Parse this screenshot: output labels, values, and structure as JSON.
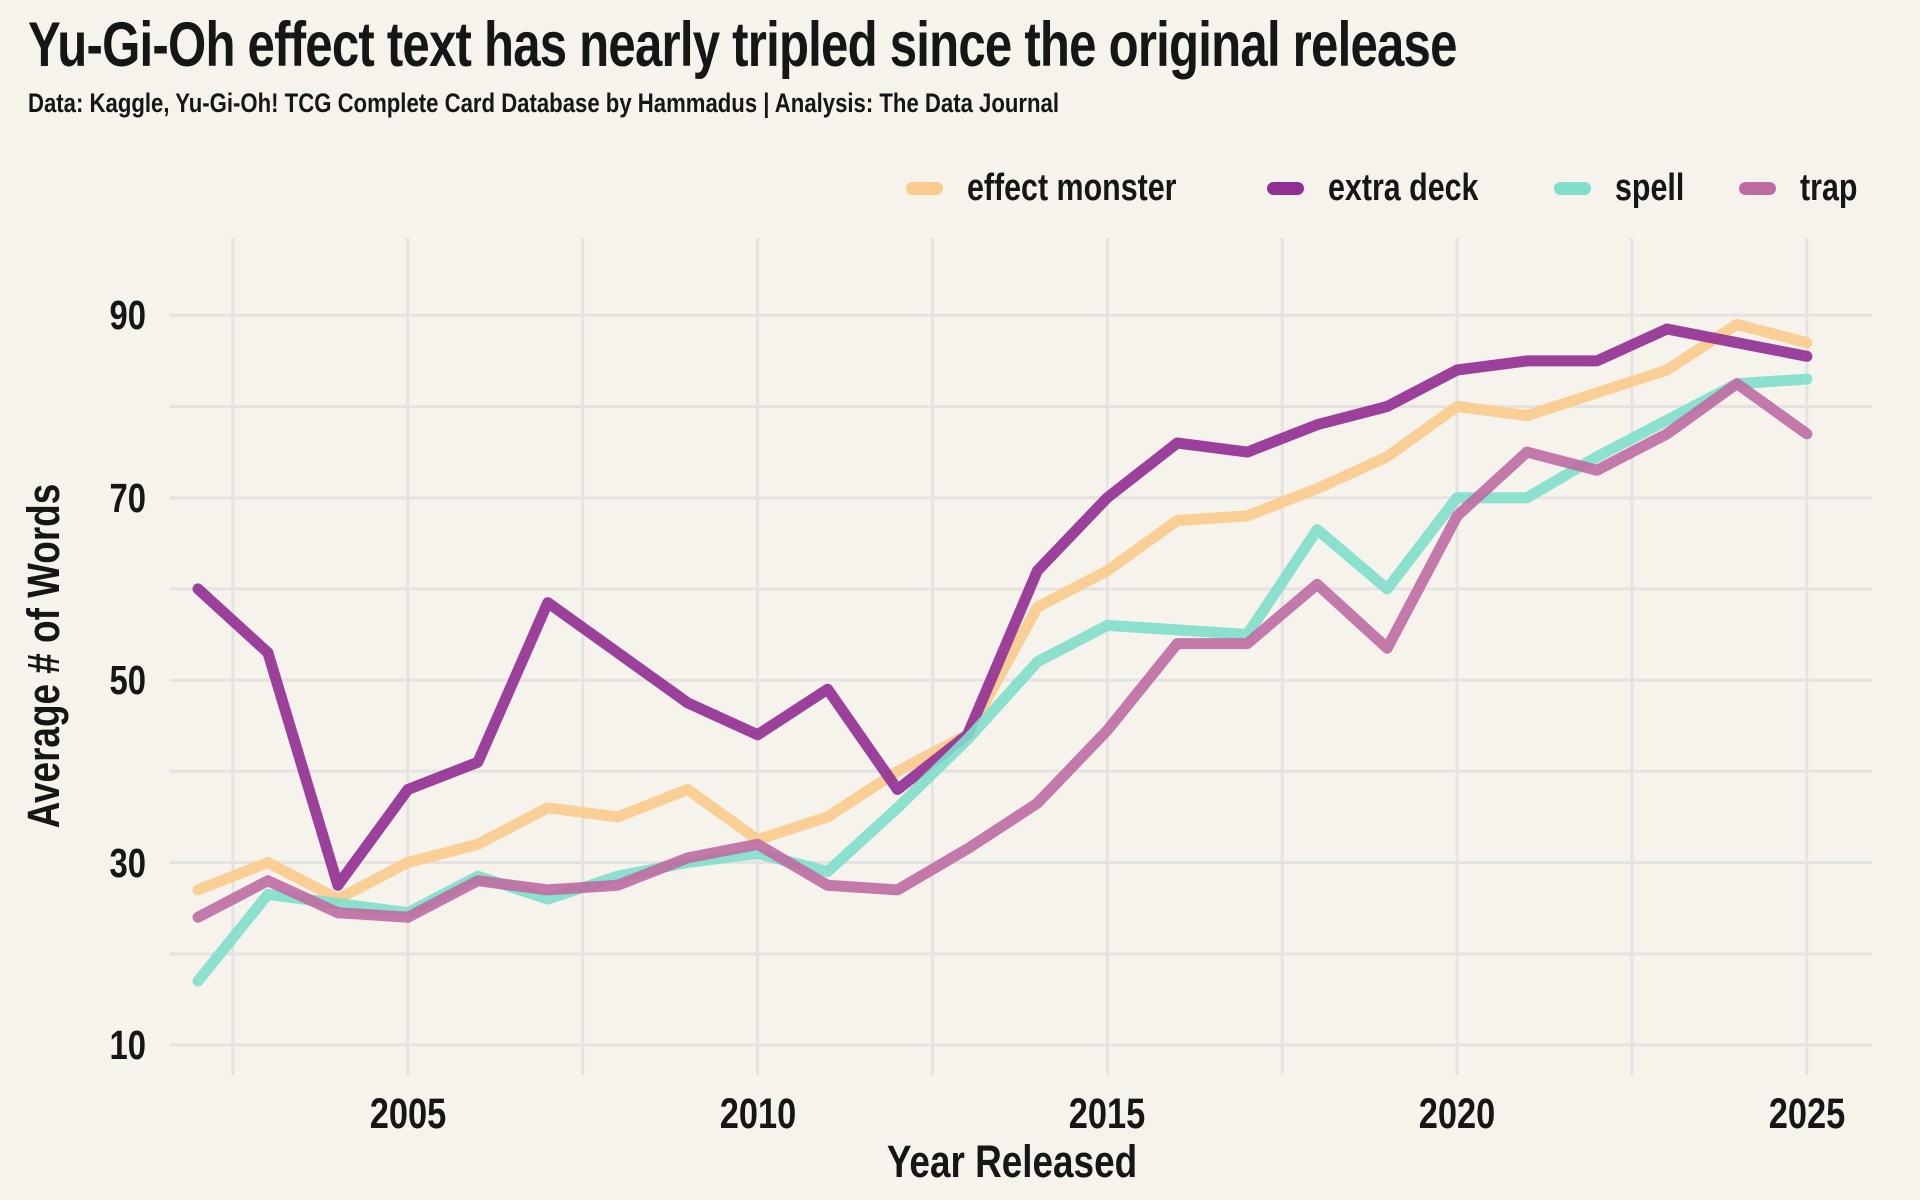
{
  "header": {
    "note": "title and subtitle live in chart_data"
  },
  "colors": {
    "background": "#F6F3EC",
    "gridline": "#E5E3E1",
    "text": "#161616"
  },
  "chart_data": {
    "type": "line",
    "title": "Yu-Gi-Oh effect text has nearly tripled since the original release",
    "subtitle": "Data: Kaggle, Yu-Gi-Oh! TCG Complete Card Database by Hammadus | Analysis: The Data Journal",
    "xlabel": "Year Released",
    "ylabel": "Average # of Words",
    "x": [
      2002,
      2003,
      2004,
      2005,
      2006,
      2007,
      2008,
      2009,
      2010,
      2011,
      2012,
      2013,
      2014,
      2015,
      2016,
      2017,
      2018,
      2019,
      2020,
      2021,
      2022,
      2023,
      2024,
      2025
    ],
    "series": [
      {
        "name": "effect monster",
        "color": "#F9CB8D",
        "values": [
          27,
          30,
          26,
          30,
          32,
          36,
          35,
          38,
          32.5,
          35,
          40,
          44,
          58,
          62,
          67.5,
          68,
          71,
          74.5,
          80,
          79,
          81.5,
          84,
          89,
          87
        ]
      },
      {
        "name": "extra deck",
        "color": "#912E94",
        "values": [
          60,
          53,
          27.5,
          38,
          41,
          58.5,
          53,
          47.5,
          44,
          49,
          38,
          44,
          62,
          70,
          76,
          75,
          78,
          80,
          84,
          85,
          85,
          88.5,
          87,
          85.5
        ]
      },
      {
        "name": "spell",
        "color": "#80DECB",
        "values": [
          17,
          26.5,
          25.5,
          24.5,
          28.5,
          26,
          28.5,
          30,
          31,
          29,
          36,
          43.5,
          52,
          56,
          55.5,
          55,
          66.5,
          60,
          70,
          70,
          74.5,
          78.5,
          82.5,
          83
        ]
      },
      {
        "name": "trap",
        "color": "#BE6BA2",
        "values": [
          24,
          28,
          24.5,
          24,
          28,
          27,
          27.5,
          30.5,
          32,
          27.5,
          27,
          31.5,
          36.5,
          44.5,
          54,
          54,
          60.5,
          53.5,
          68,
          75,
          73,
          77,
          82.5,
          77
        ]
      }
    ],
    "yticks": [
      10,
      30,
      50,
      70,
      90
    ],
    "xticks": [
      2005,
      2010,
      2015,
      2020,
      2025
    ],
    "ylim": [
      5,
      98
    ],
    "xlim": [
      2001.6,
      2025.9
    ],
    "grid": {
      "horizontal_step": 10,
      "vertical_step_years": 2.5,
      "grid_on": true
    },
    "legend_position": "top-right"
  }
}
